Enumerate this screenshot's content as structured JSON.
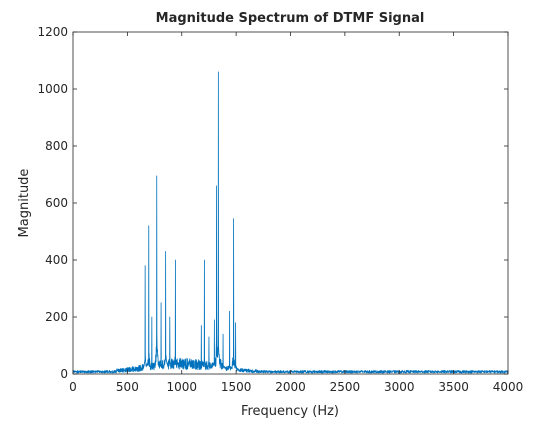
{
  "chart_data": {
    "type": "line",
    "title": "Magnitude Spectrum of DTMF Signal",
    "xlabel": "Frequency (Hz)",
    "ylabel": "Magnitude",
    "xlim": [
      0,
      4000
    ],
    "ylim": [
      0,
      1200
    ],
    "xticks": [
      0,
      500,
      1000,
      1500,
      2000,
      2500,
      3000,
      3500,
      4000
    ],
    "yticks": [
      0,
      200,
      400,
      600,
      800,
      1000,
      1200
    ],
    "grid": false,
    "box": true,
    "line_color": "#0072BD",
    "noise_floor": 10,
    "peaks": [
      {
        "x": 663,
        "y": 380
      },
      {
        "x": 697,
        "y": 520
      },
      {
        "x": 725,
        "y": 200
      },
      {
        "x": 770,
        "y": 695
      },
      {
        "x": 810,
        "y": 250
      },
      {
        "x": 852,
        "y": 430
      },
      {
        "x": 890,
        "y": 200
      },
      {
        "x": 941,
        "y": 400
      },
      {
        "x": 1180,
        "y": 170
      },
      {
        "x": 1209,
        "y": 400
      },
      {
        "x": 1250,
        "y": 130
      },
      {
        "x": 1300,
        "y": 190
      },
      {
        "x": 1320,
        "y": 660
      },
      {
        "x": 1336,
        "y": 1060
      },
      {
        "x": 1380,
        "y": 140
      },
      {
        "x": 1440,
        "y": 220
      },
      {
        "x": 1477,
        "y": 545
      },
      {
        "x": 1495,
        "y": 180
      }
    ]
  }
}
